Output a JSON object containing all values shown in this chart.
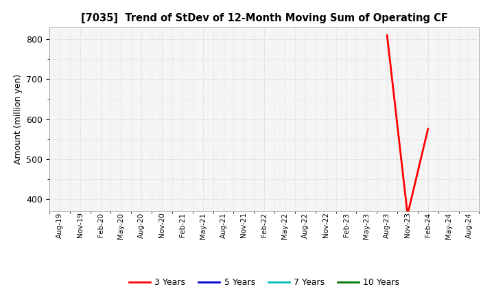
{
  "title": "[7035]  Trend of StDev of 12-Month Moving Sum of Operating CF",
  "ylabel": "Amount (million yen)",
  "ylim": [
    370,
    830
  ],
  "yticks": [
    400,
    500,
    600,
    700,
    800
  ],
  "fig_bg_color": "#ffffff",
  "plot_bg_color": "#f5f5f5",
  "grid_color": "#cccccc",
  "series": {
    "3 Years": {
      "color": "#ff0000",
      "data": {
        "Aug-23": 810,
        "Nov-23": 362,
        "Feb-24": 576
      }
    },
    "5 Years": {
      "color": "#0000cc",
      "data": {}
    },
    "7 Years": {
      "color": "#00bbbb",
      "data": {}
    },
    "10 Years": {
      "color": "#007700",
      "data": {}
    }
  },
  "x_tick_labels": [
    "Aug-19",
    "Nov-19",
    "Feb-20",
    "May-20",
    "Aug-20",
    "Nov-20",
    "Feb-21",
    "May-21",
    "Aug-21",
    "Nov-21",
    "Feb-22",
    "May-22",
    "Aug-22",
    "Nov-22",
    "Feb-23",
    "May-23",
    "Aug-23",
    "Nov-23",
    "Feb-24",
    "May-24",
    "Aug-24"
  ]
}
